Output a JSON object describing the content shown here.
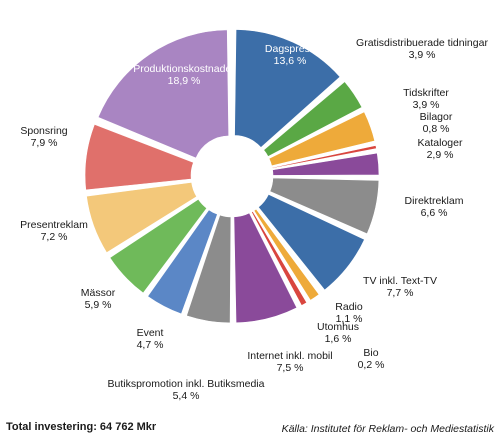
{
  "chart_data": {
    "type": "pie",
    "exploded": true,
    "unit": "%",
    "slices": [
      {
        "name": "Dagspress",
        "value": 13.6,
        "value_label": "13,6 %",
        "color": "#3c6ea8"
      },
      {
        "name": "Gratisdistribuerade tidningar",
        "value": 3.9,
        "value_label": "3,9 %",
        "color": "#5aa845"
      },
      {
        "name": "Tidskrifter",
        "value": 3.9,
        "value_label": "3,9 %",
        "color": "#eeaa3a"
      },
      {
        "name": "Bilagor",
        "value": 0.8,
        "value_label": "0,8 %",
        "color": "#d9463f"
      },
      {
        "name": "Kataloger",
        "value": 2.9,
        "value_label": "2,9 %",
        "color": "#8a4a9a"
      },
      {
        "name": "Direktreklam",
        "value": 6.6,
        "value_label": "6,6 %",
        "color": "#8c8c8c"
      },
      {
        "name": "TV inkl. Text-TV",
        "value": 7.7,
        "value_label": "7,7 %",
        "color": "#3c6ea8"
      },
      {
        "name": "Bio",
        "value": 0.2,
        "value_label": "0,2 %",
        "color": "#5aa845"
      },
      {
        "name": "Utomhus",
        "value": 1.6,
        "value_label": "1,6 %",
        "color": "#eeaa3a"
      },
      {
        "name": "Radio",
        "value": 1.1,
        "value_label": "1,1 %",
        "color": "#d9463f"
      },
      {
        "name": "Internet inkl. mobil",
        "value": 7.5,
        "value_label": "7,5 %",
        "color": "#8a4a9a"
      },
      {
        "name": "Butikspromotion inkl. Butiksmedia",
        "value": 5.4,
        "value_label": "5,4 %",
        "color": "#8c8c8c"
      },
      {
        "name": "Event",
        "value": 4.7,
        "value_label": "4,7 %",
        "color": "#5b87c6"
      },
      {
        "name": "Mässor",
        "value": 5.9,
        "value_label": "5,9 %",
        "color": "#6fba5a"
      },
      {
        "name": "Presentreklam",
        "value": 7.2,
        "value_label": "7,2 %",
        "color": "#f3c87a"
      },
      {
        "name": "Sponsring",
        "value": 7.9,
        "value_label": "7,9 %",
        "color": "#e0706b"
      },
      {
        "name": "Produktionskostnader",
        "value": 18.9,
        "value_label": "18,9 %",
        "color": "#a985c2"
      }
    ]
  },
  "footer": {
    "total": "Total investering: 64 762 Mkr",
    "source": "Källa: Institutet för Reklam- och Mediestatistik"
  }
}
